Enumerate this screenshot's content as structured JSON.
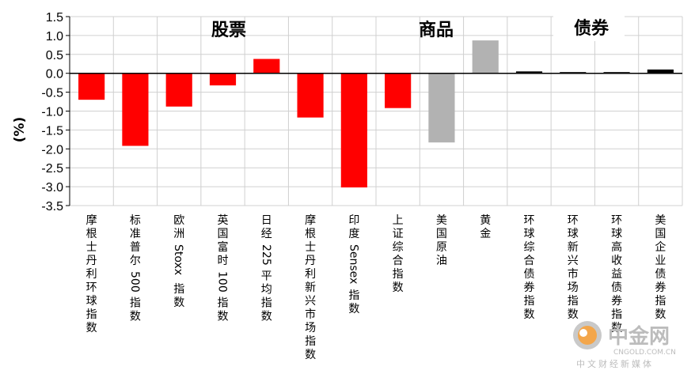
{
  "chart_data": {
    "type": "bar",
    "ylabel": "(%)",
    "ylim": [
      -3.5,
      1.5
    ],
    "yticks": [
      1.5,
      1.0,
      0.5,
      0.0,
      -0.5,
      -1.0,
      -1.5,
      -2.0,
      -2.5,
      -3.0,
      -3.5
    ],
    "ytick_labels": [
      "1.5",
      "1.0",
      "0.5",
      "0.0",
      "-0.5",
      "-1.0",
      "-1.5",
      "-2.0",
      "-2.5",
      "-3.0",
      "-3.5"
    ],
    "grid": true,
    "categories": [
      "摩根士丹利环球指数",
      "标准普尔 500 指数",
      "欧洲 Stoxx 指数",
      "英国富时 100 指数",
      "日经 225 平均指数",
      "摩根士丹利新兴市场指数",
      "印度 Sensex 指数",
      "上证综合指数",
      "美国原油",
      "黄金",
      "环球综合债券指数",
      "环球新兴市场指数",
      "环球高收益债券指数",
      "美国企业债券指数"
    ],
    "values": [
      -0.7,
      -1.92,
      -0.88,
      -0.32,
      0.38,
      -1.17,
      -3.02,
      -0.92,
      -1.83,
      0.87,
      0.05,
      0.02,
      0.02,
      0.1
    ],
    "groups": [
      {
        "label": "股票",
        "start": 0,
        "end": 7,
        "color": "#ff0000"
      },
      {
        "label": "商品",
        "start": 8,
        "end": 9,
        "color": "#b2b2b2"
      },
      {
        "label": "债券",
        "start": 10,
        "end": 13,
        "color": "#000000"
      }
    ]
  },
  "watermark": {
    "logo_text": "中金网",
    "site": "CNGOLD.COM.CN",
    "tagline": "中文财经新媒体"
  }
}
